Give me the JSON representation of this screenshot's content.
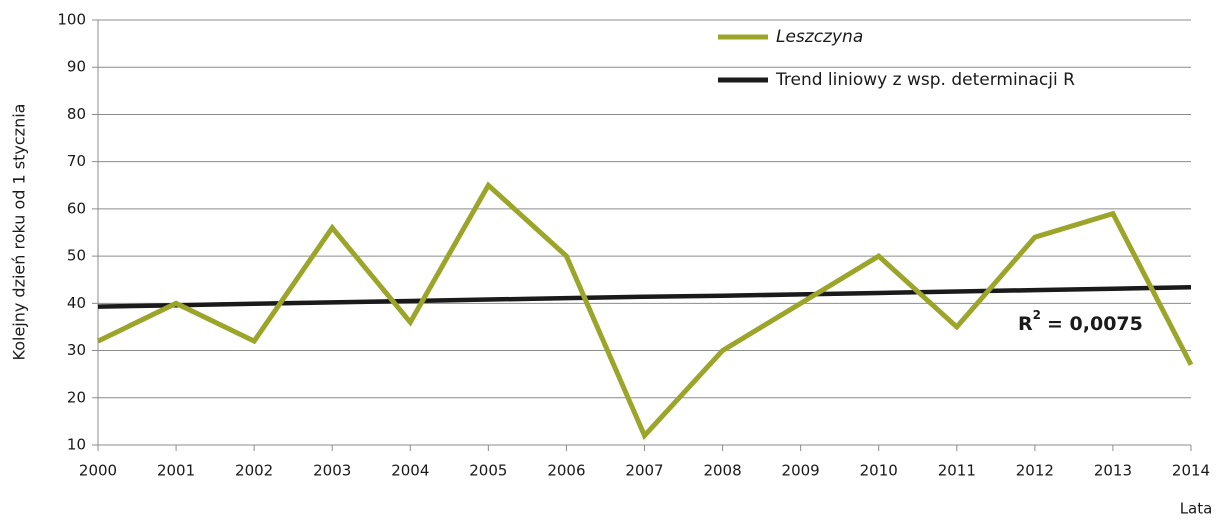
{
  "chart_data": {
    "type": "line",
    "categories": [
      "2000",
      "2001",
      "2002",
      "2003",
      "2004",
      "2005",
      "2006",
      "2007",
      "2008",
      "2009",
      "2010",
      "2011",
      "2012",
      "2013",
      "2014"
    ],
    "series": [
      {
        "name": "Leszczyna",
        "color": "#9aa52a",
        "values": [
          32,
          40,
          32,
          56,
          36,
          65,
          50,
          12,
          30,
          40,
          50,
          35,
          54,
          59,
          27
        ]
      },
      {
        "name": "Trend liniowy z wsp. determinacji R",
        "color": "#1a1a1a",
        "values": [
          39.3,
          39.6,
          39.9,
          40.2,
          40.5,
          40.8,
          41.1,
          41.4,
          41.6,
          41.9,
          42.2,
          42.5,
          42.8,
          43.1,
          43.4
        ]
      }
    ],
    "y_label": "Kolejny dzień roku od 1 stycznia",
    "x_label": "Lata",
    "annotation": {
      "base": "R",
      "sup": "2",
      "rest": "= 0,0075"
    },
    "ylim": [
      10,
      100
    ],
    "yticks": [
      10,
      20,
      30,
      40,
      50,
      60,
      70,
      80,
      90,
      100
    ],
    "grid": true
  }
}
